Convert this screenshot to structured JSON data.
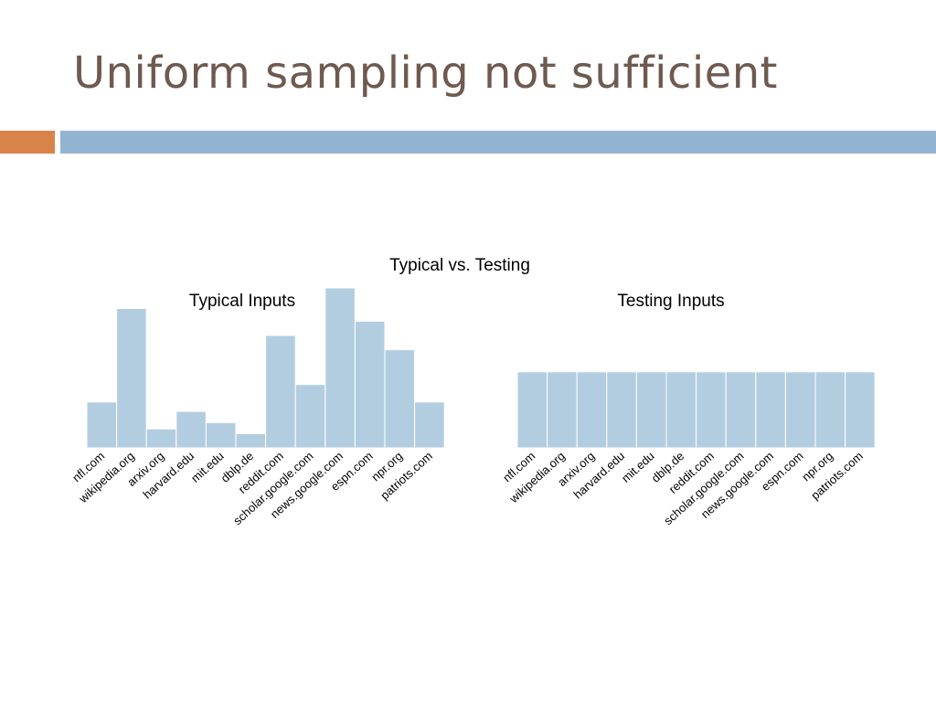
{
  "slide": {
    "title": "Uniform sampling not sufficient"
  },
  "colors": {
    "title_text": "#6e5a4f",
    "accent_orange": "#d9834b",
    "accent_blue": "#93b3d3",
    "bar_fill": "#b3cde0",
    "bar_stroke": "#ffffff"
  },
  "chart_title": "Typical vs. Testing",
  "chart_data": [
    {
      "type": "bar",
      "title": "Typical Inputs",
      "categories": [
        "nfl.com",
        "wikipedia.org",
        "arxiv.org",
        "harvard.edu",
        "mit.edu",
        "dblp.de",
        "reddit.com",
        "scholar.google.com",
        "news.google.com",
        "espn.com",
        "npr.org",
        "patriots.com"
      ],
      "values": [
        29,
        88,
        12,
        23,
        16,
        9,
        71,
        40,
        101,
        80,
        62,
        29
      ],
      "ylim": [
        0,
        101
      ],
      "xlabel": "",
      "ylabel": "",
      "grid": false,
      "legend": "none"
    },
    {
      "type": "bar",
      "title": "Testing Inputs",
      "categories": [
        "nfl.com",
        "wikipedia.org",
        "arxiv.org",
        "harvard.edu",
        "mit.edu",
        "dblp.de",
        "reddit.com",
        "scholar.google.com",
        "news.google.com",
        "espn.com",
        "npr.org",
        "patriots.com"
      ],
      "values": [
        48,
        48,
        48,
        48,
        48,
        48,
        48,
        48,
        48,
        48,
        48,
        48
      ],
      "ylim": [
        0,
        101
      ],
      "xlabel": "",
      "ylabel": "",
      "grid": false,
      "legend": "none"
    }
  ]
}
